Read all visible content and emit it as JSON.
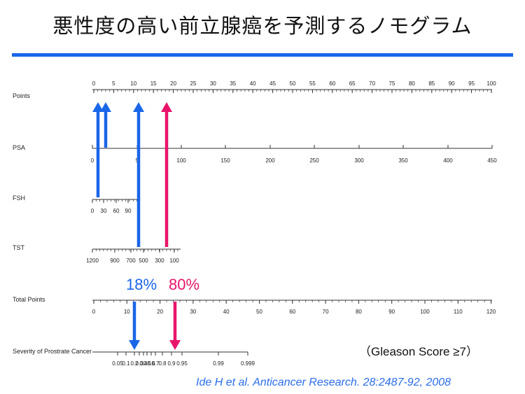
{
  "title": "悪性度の高い前立腺癌を予測するノモグラム",
  "note": "（Gleason Score ≥7）",
  "citation": "Ide H et al. Anticancer Research. 28:2487-92, 2008",
  "colors": {
    "accent_blue": "#1a66e8",
    "accent_red": "#e8146a",
    "axis": "#333333"
  },
  "axes": {
    "points": {
      "label": "Points",
      "ticks": [
        "0",
        "5",
        "10",
        "15",
        "20",
        "25",
        "30",
        "35",
        "40",
        "45",
        "50",
        "55",
        "60",
        "65",
        "70",
        "75",
        "80",
        "85",
        "90",
        "95",
        "100"
      ]
    },
    "psa": {
      "label": "PSA",
      "ticks": [
        "0",
        "5",
        "100",
        "150",
        "200",
        "250",
        "300",
        "350",
        "400",
        "450"
      ]
    },
    "fsh": {
      "label": "FSH",
      "ticks": [
        "0",
        "30",
        "60",
        "90"
      ]
    },
    "tst": {
      "label": "TST",
      "ticks": [
        "1200",
        "900",
        "700",
        "500",
        "300",
        "100"
      ]
    },
    "total": {
      "label": "Total Points",
      "ticks": [
        "0",
        "10",
        "20",
        "30",
        "40",
        "50",
        "60",
        "70",
        "80",
        "90",
        "100",
        "110",
        "120"
      ]
    },
    "severity": {
      "label": "Severity of Prostrate Cancer",
      "ticks": [
        "0.05",
        "0.1",
        "0.2",
        "0.3",
        "0.4",
        "0.5",
        "0.6",
        "0.7",
        "0.8",
        "0.9",
        "0.95",
        "0.99",
        "0.999"
      ]
    }
  },
  "result": {
    "blue_pct": "18%",
    "red_pct": "80%"
  }
}
